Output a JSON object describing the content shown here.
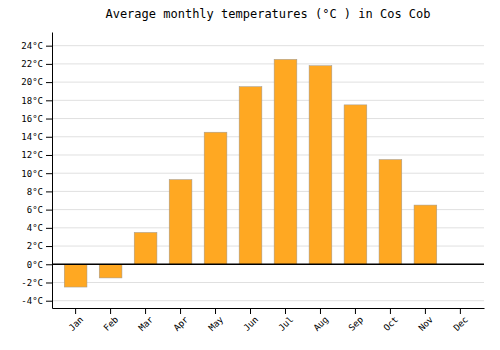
{
  "chart_data": {
    "type": "bar",
    "title": "Average monthly temperatures (°C ) in Cos Cob",
    "categories": [
      "Jan",
      "Feb",
      "Mar",
      "Apr",
      "May",
      "Jun",
      "Jul",
      "Aug",
      "Sep",
      "Oct",
      "Nov",
      "Dec"
    ],
    "values": [
      -2.5,
      -1.5,
      3.5,
      9.3,
      14.5,
      19.5,
      22.5,
      21.8,
      17.5,
      11.5,
      6.5,
      0.0
    ],
    "color": "#FFA822",
    "ylim": [
      -4.8,
      25.5
    ],
    "yticks": [
      {
        "value": -4,
        "label": "-4°C"
      },
      {
        "value": -2,
        "label": "-2°C"
      },
      {
        "value": 0,
        "label": "0°C"
      },
      {
        "value": 2,
        "label": "2°C"
      },
      {
        "value": 4,
        "label": "4°C"
      },
      {
        "value": 6,
        "label": "6°C"
      },
      {
        "value": 8,
        "label": "8°C"
      },
      {
        "value": 10,
        "label": "10°C"
      },
      {
        "value": 12,
        "label": "12°C"
      },
      {
        "value": 14,
        "label": "14°C"
      },
      {
        "value": 16,
        "label": "16°C"
      },
      {
        "value": 18,
        "label": "18°C"
      },
      {
        "value": 20,
        "label": "20°C"
      },
      {
        "value": 22,
        "label": "22°C"
      },
      {
        "value": 24,
        "label": "24°C"
      }
    ],
    "grid": true
  }
}
